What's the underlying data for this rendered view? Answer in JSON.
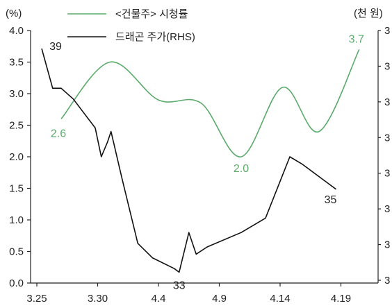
{
  "chart_data": {
    "type": "line",
    "left_axis_unit": "(%)",
    "right_axis_unit": "(천 원)",
    "left_ylim": [
      0.0,
      4.0
    ],
    "left_ticks": [
      "0.0",
      "0.5",
      "1.0",
      "1.5",
      "2.0",
      "2.5",
      "3.0",
      "3.5",
      "4.0"
    ],
    "right_ticks": [
      "3",
      "3",
      "3",
      "3",
      "3",
      "3",
      "3",
      "3"
    ],
    "x_ticks": [
      "3.25",
      "3.30",
      "4.4",
      "4.9",
      "4.14",
      "4.19"
    ],
    "grid": false,
    "legend_position": "top-center",
    "series": [
      {
        "name": "<건물주> 시청률",
        "axis": "left",
        "color": "#5aaa6a",
        "points": [
          [
            2.0,
            2.6
          ],
          [
            6.0,
            3.5
          ],
          [
            10.0,
            2.9
          ],
          [
            13.5,
            2.85
          ],
          [
            16.8,
            2.0
          ],
          [
            20.2,
            3.1
          ],
          [
            23.2,
            2.4
          ],
          [
            26.5,
            3.7
          ]
        ],
        "labels": [
          {
            "text": "2.6",
            "x": 2.0,
            "y": 2.6
          },
          {
            "text": "2.0",
            "x": 16.8,
            "y": 2.0
          },
          {
            "text": "3.7",
            "x": 26.5,
            "y": 3.7
          }
        ]
      },
      {
        "name": "드래곤 주가(RHS)",
        "axis": "right",
        "color": "#111111",
        "right_range": [
          32.5,
          39.5
        ],
        "points": [
          [
            0.4,
            39.0
          ],
          [
            1.3,
            37.9
          ],
          [
            2.0,
            37.9
          ],
          [
            3.0,
            37.6
          ],
          [
            4.8,
            36.8
          ],
          [
            5.3,
            36.0
          ],
          [
            5.8,
            36.4
          ],
          [
            6.1,
            36.7
          ],
          [
            7.0,
            35.4
          ],
          [
            8.3,
            33.6
          ],
          [
            9.5,
            33.2
          ],
          [
            11.3,
            32.9
          ],
          [
            11.7,
            32.8
          ],
          [
            12.5,
            33.9
          ],
          [
            13.1,
            33.3
          ],
          [
            14.0,
            33.5
          ],
          [
            16.8,
            33.9
          ],
          [
            18.8,
            34.3
          ],
          [
            20.8,
            36.0
          ],
          [
            21.8,
            35.8
          ],
          [
            23.8,
            35.3
          ],
          [
            24.6,
            35.1
          ]
        ],
        "labels": [
          {
            "text": "39",
            "x": 0.4,
            "y": 39.0
          },
          {
            "text": "33",
            "x": 11.7,
            "y": 32.8
          },
          {
            "text": "35",
            "x": 24.6,
            "y": 35.1
          }
        ]
      }
    ]
  }
}
